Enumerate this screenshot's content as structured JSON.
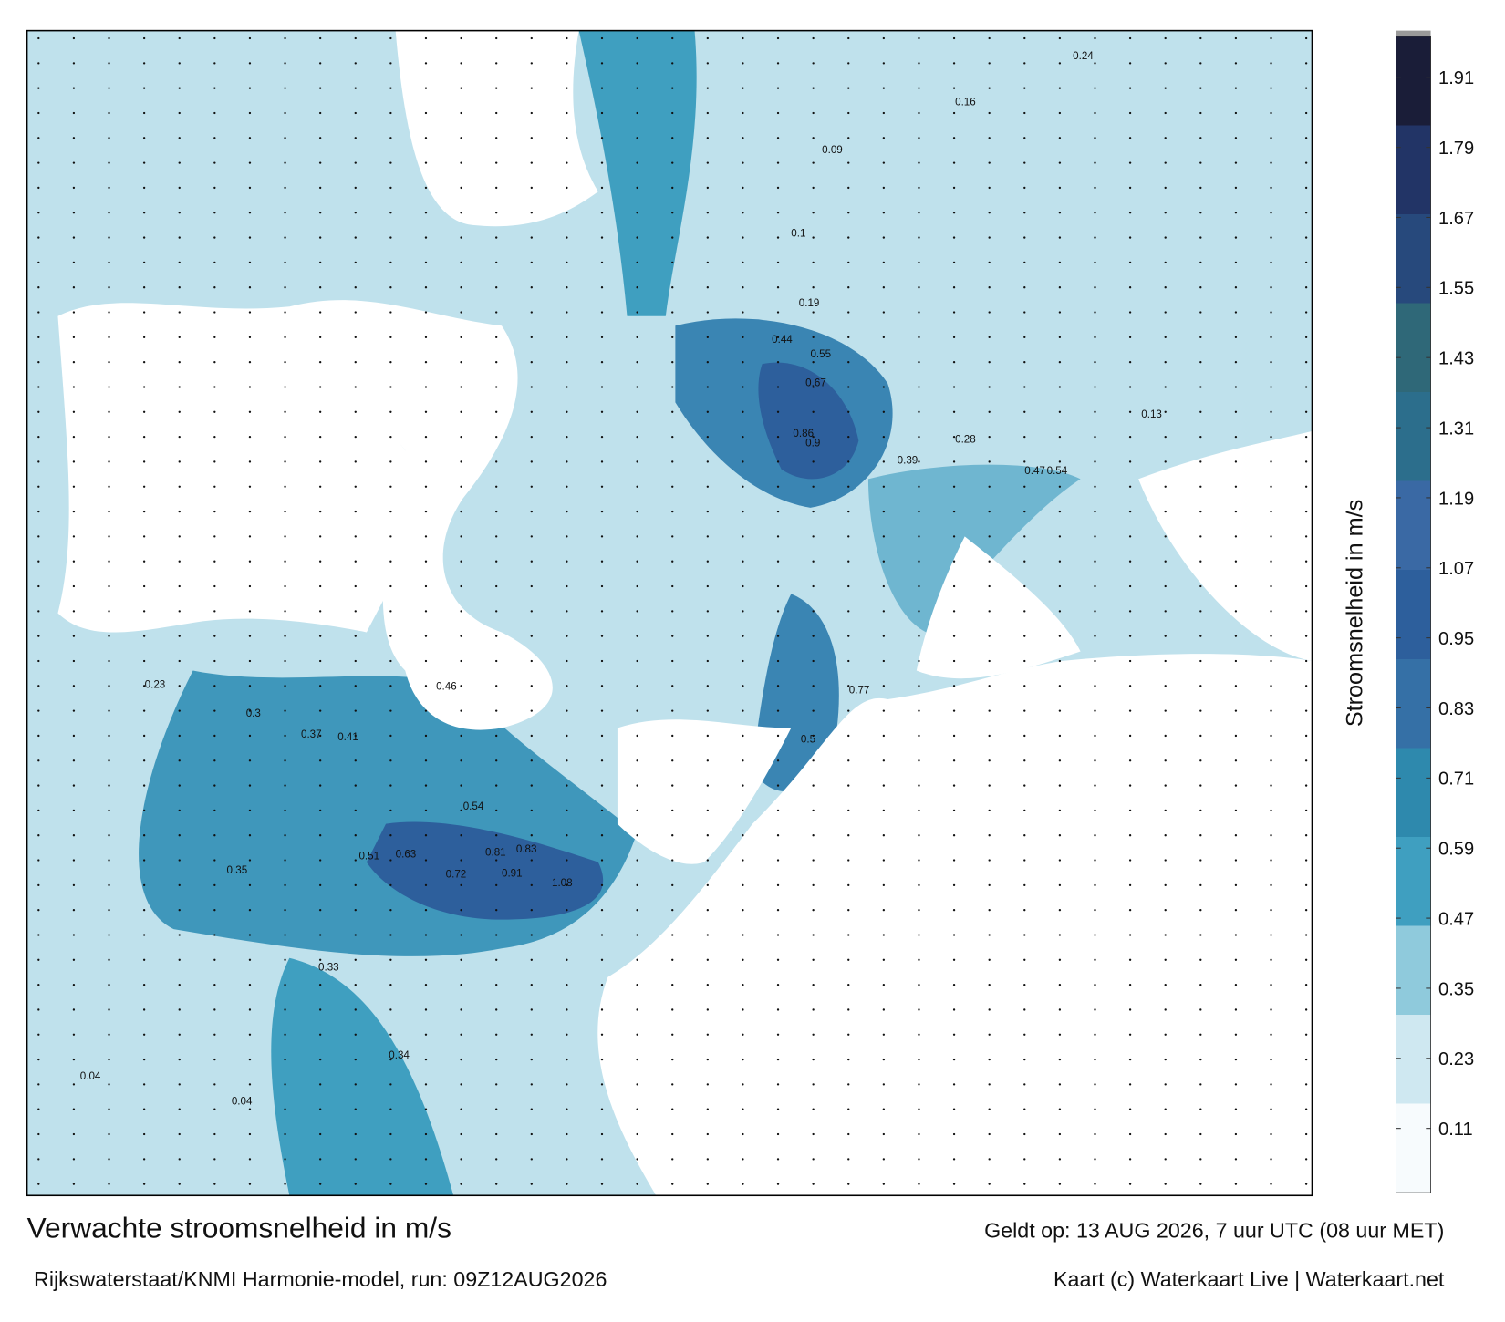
{
  "title": "Verwachte stroomsnelheid in m/s",
  "subtitle": "Rijkswaterstaat/KNMI Harmonie-model, run: 09Z12AUG2026",
  "valid_time": "Geldt op: 13 AUG 2026, 7 uur UTC (08 uur MET)",
  "credit": "Kaart (c) Waterkaart Live | Waterkaart.net",
  "colorbar": {
    "label": "Stroomsnelheid in m/s",
    "lim": [
      0,
      1.98
    ],
    "ticks": [
      0.11,
      0.23,
      0.35,
      0.47,
      0.59,
      0.71,
      0.83,
      0.95,
      1.07,
      1.19,
      1.31,
      1.43,
      1.55,
      1.67,
      1.79,
      1.91
    ],
    "colors": [
      "#f7fbfd",
      "#cfe8f1",
      "#8fcadc",
      "#3f9fc0",
      "#2e89ad",
      "#3570a6",
      "#2d5f9c",
      "#3a69a4",
      "#2c6e8c",
      "#2f6878",
      "#27497c",
      "#223466",
      "#1a1d38"
    ]
  },
  "map_labels": [
    0.67,
    0.9,
    0.86,
    1.08,
    0.91,
    0.81,
    0.83,
    0.72,
    0.63,
    0.51,
    0.35,
    0.3,
    0.37,
    0.41,
    0.54,
    0.46,
    0.44,
    0.55,
    0.39,
    0.47,
    0.54,
    0.5,
    0.77,
    0.34,
    0.33,
    0.23,
    0.16,
    0.24,
    0.13,
    0.04,
    0.04,
    0.28,
    0.1,
    0.09,
    0.19
  ]
}
